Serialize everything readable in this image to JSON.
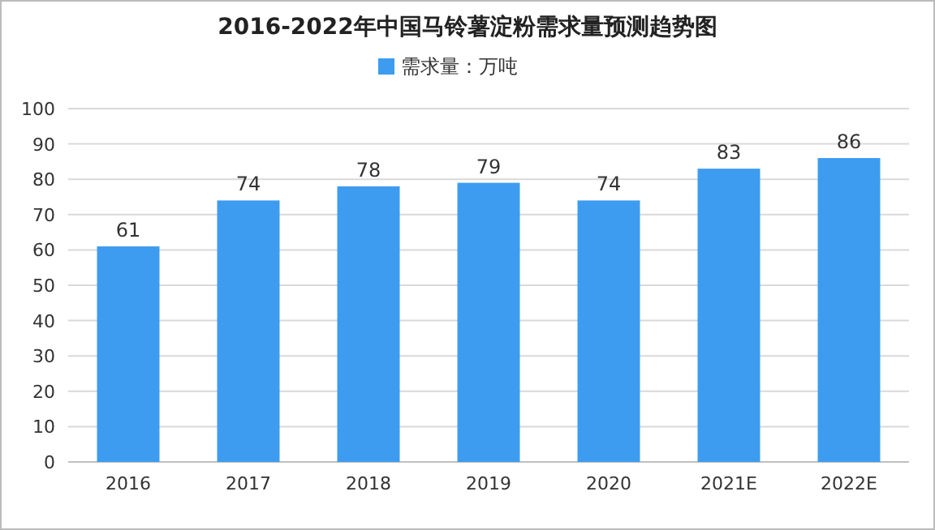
{
  "chart_data": {
    "type": "bar",
    "title": "2016-2022年中国马铃薯淀粉需求量预测趋势图",
    "categories": [
      "2016",
      "2017",
      "2018",
      "2019",
      "2020",
      "2021E",
      "2022E"
    ],
    "series": [
      {
        "name": "需求量：万吨",
        "color": "#3d9cf0",
        "values": [
          61,
          74,
          78,
          79,
          74,
          83,
          86
        ]
      }
    ],
    "ylim": [
      0,
      100
    ],
    "yticks": [
      0,
      10,
      20,
      30,
      40,
      50,
      60,
      70,
      80,
      90,
      100
    ],
    "grid": "y",
    "legend": "top",
    "data_labels": true
  }
}
